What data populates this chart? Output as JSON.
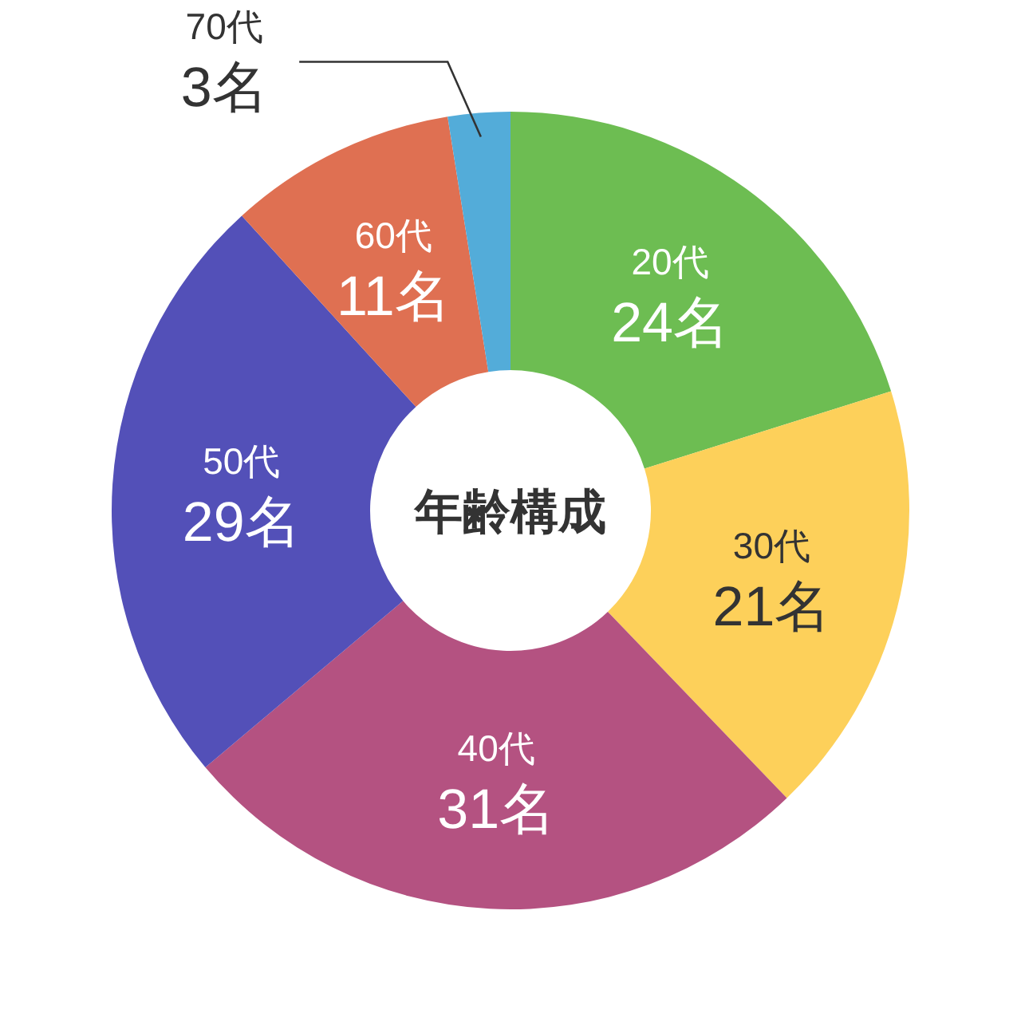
{
  "chart_data": {
    "type": "donut",
    "title": "年齢構成",
    "categories": [
      "20代",
      "30代",
      "40代",
      "50代",
      "60代",
      "70代"
    ],
    "values": [
      24,
      21,
      31,
      29,
      11,
      3
    ],
    "value_labels": [
      "24名",
      "21名",
      "31名",
      "29名",
      "11名",
      "3名"
    ],
    "colors": [
      "#6dbd52",
      "#fdd05a",
      "#b45281",
      "#5350b8",
      "#df7052",
      "#53acd9"
    ]
  }
}
